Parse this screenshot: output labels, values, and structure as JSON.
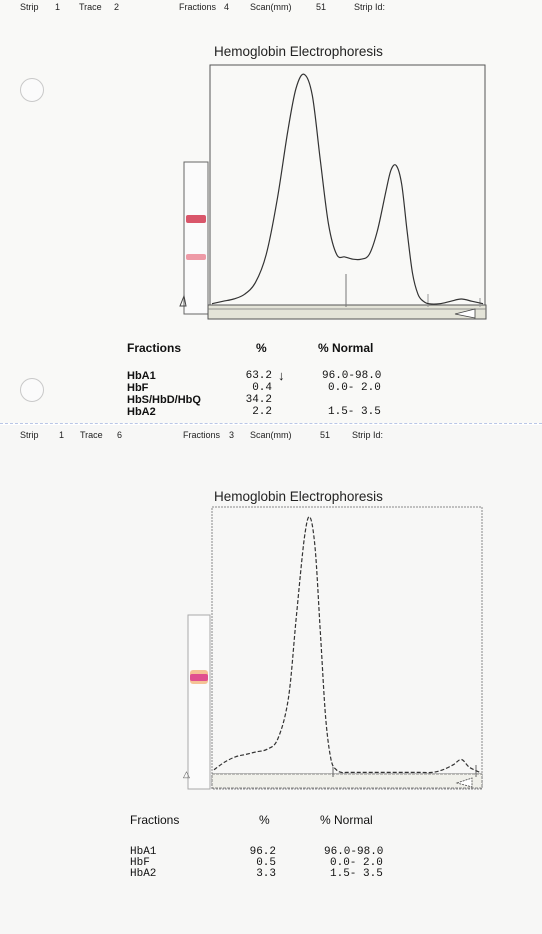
{
  "panels": [
    {
      "header": {
        "strip_label": "Strip",
        "strip_value": "1",
        "trace_label": "Trace",
        "trace_value": "2",
        "fractions_label": "Fractions",
        "fractions_value": "4",
        "scan_label": "Scan(mm)",
        "scan_value": "51",
        "strip_id_label": "Strip Id:"
      },
      "table": {
        "col_fraction": "Fractions",
        "col_percent": "%",
        "col_normal": "% Normal",
        "rows": [
          {
            "name": "HbA1",
            "percent": "63.2",
            "flag": "↓",
            "normal": "96.0-98.0"
          },
          {
            "name": "HbF",
            "percent": "0.4",
            "flag": "",
            "normal": "0.0- 2.0"
          },
          {
            "name": "HbS/HbD/HbQ",
            "percent": "34.2",
            "flag": "",
            "normal": ""
          },
          {
            "name": "HbA2",
            "percent": "2.2",
            "flag": "",
            "normal": "1.5- 3.5"
          }
        ]
      },
      "colors": {
        "band_strong": "#d9566a",
        "band_weak": "#ee9aa6",
        "trace": "#333333"
      }
    },
    {
      "header": {
        "strip_label": "Strip",
        "strip_value": "1",
        "trace_label": "Trace",
        "trace_value": "6",
        "fractions_label": "Fractions",
        "fractions_value": "3",
        "scan_label": "Scan(mm)",
        "scan_value": "51",
        "strip_id_label": "Strip Id:"
      },
      "table": {
        "col_fraction": "Fractions",
        "col_percent": "%",
        "col_normal": "% Normal",
        "rows": [
          {
            "name": "HbA1",
            "percent": "96.2",
            "flag": "",
            "normal": "96.0-98.0"
          },
          {
            "name": "HbF",
            "percent": "0.5",
            "flag": "",
            "normal": "0.0- 2.0"
          },
          {
            "name": "HbA2",
            "percent": "3.3",
            "flag": "",
            "normal": "1.5- 3.5"
          }
        ]
      },
      "colors": {
        "band_strong": "#e0508f",
        "band_halo": "#f2a96a",
        "trace": "#333333"
      }
    }
  ],
  "chart_data": [
    {
      "type": "line",
      "title": "Hemoglobin Electrophoresis",
      "xlabel": "",
      "ylabel": "",
      "x": [
        0,
        0.04,
        0.08,
        0.12,
        0.16,
        0.2,
        0.24,
        0.28,
        0.31,
        0.34,
        0.37,
        0.4,
        0.43,
        0.46,
        0.49,
        0.52,
        0.55,
        0.58,
        0.61,
        0.64,
        0.66,
        0.68,
        0.7,
        0.72,
        0.74,
        0.76,
        0.78,
        0.8,
        0.84,
        0.88,
        0.92,
        0.96,
        1.0
      ],
      "series": [
        {
          "values": [
            0.01,
            0.02,
            0.03,
            0.05,
            0.1,
            0.22,
            0.45,
            0.75,
            0.93,
            0.99,
            0.9,
            0.62,
            0.35,
            0.22,
            0.21,
            0.2,
            0.2,
            0.22,
            0.32,
            0.48,
            0.58,
            0.6,
            0.52,
            0.32,
            0.14,
            0.05,
            0.02,
            0.01,
            0.01,
            0.02,
            0.03,
            0.02,
            0.01
          ]
        }
      ]
    },
    {
      "type": "line",
      "title": "Hemoglobin Electrophoresis",
      "xlabel": "",
      "ylabel": "",
      "x": [
        0,
        0.04,
        0.08,
        0.12,
        0.16,
        0.2,
        0.24,
        0.28,
        0.31,
        0.34,
        0.36,
        0.38,
        0.4,
        0.42,
        0.44,
        0.46,
        0.48,
        0.5,
        0.54,
        0.58,
        0.62,
        0.66,
        0.7,
        0.74,
        0.78,
        0.82,
        0.86,
        0.9,
        0.93,
        0.96,
        1.0
      ],
      "series": [
        {
          "values": [
            0.02,
            0.05,
            0.07,
            0.08,
            0.09,
            0.1,
            0.14,
            0.3,
            0.62,
            0.92,
            1.0,
            0.88,
            0.55,
            0.22,
            0.06,
            0.02,
            0.01,
            0.01,
            0.01,
            0.01,
            0.01,
            0.01,
            0.01,
            0.01,
            0.01,
            0.01,
            0.02,
            0.04,
            0.06,
            0.03,
            0.01
          ]
        }
      ]
    }
  ]
}
